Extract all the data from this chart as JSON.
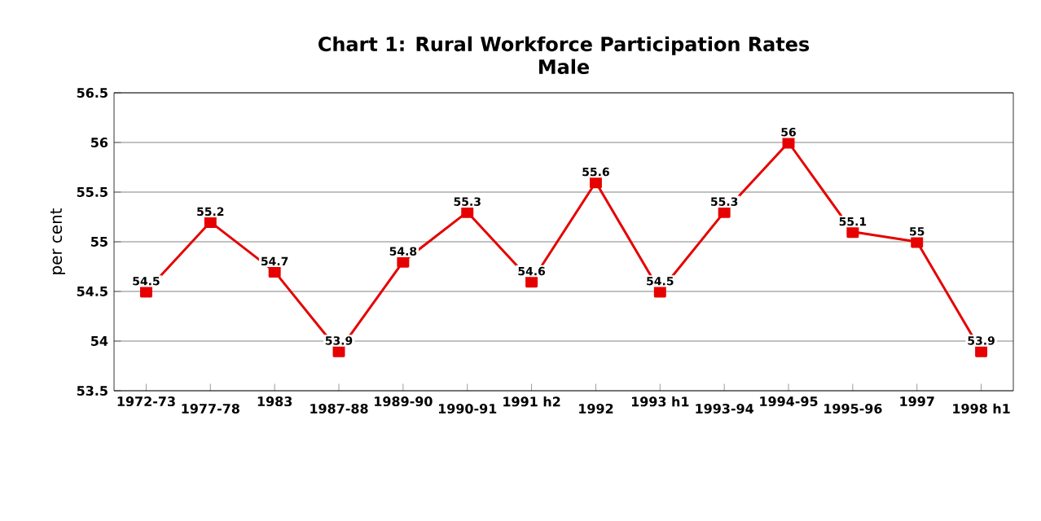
{
  "chart_data": {
    "type": "line",
    "title": "Chart 1: Rural Workforce Participation Rates",
    "subtitle": "Male",
    "ylabel": "per cent",
    "categories": [
      "1972-73",
      "1977-78",
      "1983",
      "1987-88",
      "1989-90",
      "1990-91",
      "1991 h2",
      "1992",
      "1993 h1",
      "1993-94",
      "1994-95",
      "1995-96",
      "1997",
      "1998 h1"
    ],
    "values": [
      54.5,
      55.2,
      54.7,
      53.9,
      54.8,
      55.3,
      54.6,
      55.6,
      54.5,
      55.3,
      56,
      55.1,
      55,
      53.9
    ],
    "color": "#e60000",
    "marker": "square",
    "ylim": [
      53.5,
      56.5
    ],
    "yticks": [
      53.5,
      54,
      54.5,
      55,
      55.5,
      56,
      56.5
    ],
    "grid": "y",
    "data_labels": true
  }
}
